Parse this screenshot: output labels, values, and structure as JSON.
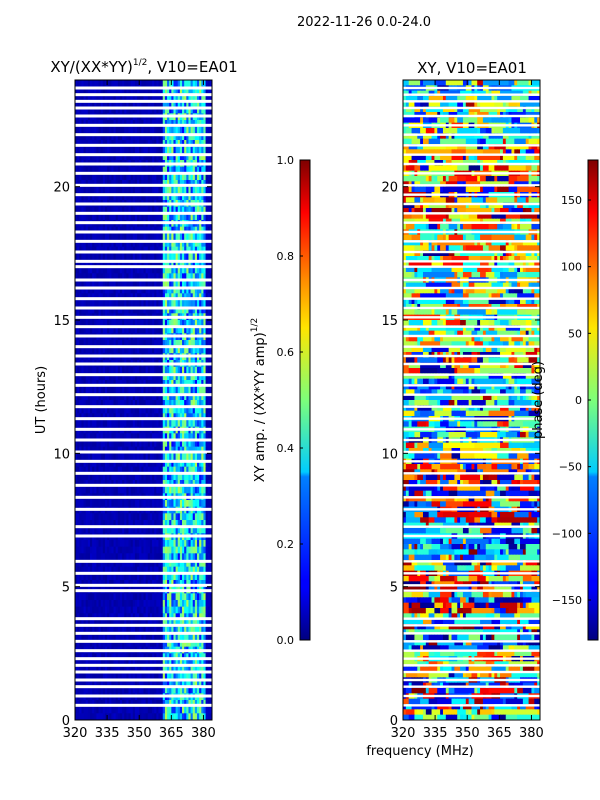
{
  "figure": {
    "suptitle": "2022-11-26 0.0-24.0",
    "shared_xlabel": "frequency (MHz)"
  },
  "chart_data": [
    {
      "type": "heatmap",
      "title_main": "XY/(XX*YY)",
      "title_exp": "1/2",
      "title_suffix": ", V10=EA01",
      "xlabel": "",
      "ylabel": "UT (hours)",
      "xlim": [
        320,
        384
      ],
      "ylim": [
        0,
        24
      ],
      "xticks": [
        320,
        335,
        350,
        365,
        380
      ],
      "yticks": [
        0,
        5,
        10,
        15,
        20
      ],
      "colorbar": {
        "label_main": "XY amp. / (XX*YY amp)",
        "label_exp": "1/2",
        "range": [
          0.0,
          1.0
        ],
        "ticks": [
          "0.0",
          "0.2",
          "0.4",
          "0.6",
          "0.8",
          "1.0"
        ],
        "cmap": "jet"
      },
      "rfi_band_mhz": [
        361,
        381
      ],
      "background_value": 0.05,
      "band_value_range": [
        0.25,
        0.55
      ]
    },
    {
      "type": "heatmap",
      "title": "XY, V10=EA01",
      "xlabel": "",
      "ylabel": "",
      "xlim": [
        320,
        384
      ],
      "ylim": [
        0,
        24
      ],
      "xticks": [
        320,
        335,
        350,
        365,
        380
      ],
      "yticks": [
        0,
        5,
        10,
        15,
        20
      ],
      "colorbar": {
        "label": "phase (deg)",
        "range": [
          -180,
          180
        ],
        "ticks": [
          "−150",
          "−100",
          "−50",
          "0",
          "50",
          "100",
          "150"
        ],
        "tick_values": [
          -150,
          -100,
          -50,
          0,
          50,
          100,
          150
        ],
        "cmap": "jet"
      },
      "value_range": [
        -180,
        180
      ]
    }
  ],
  "flagged_rows_ut_hours": [
    0.55,
    0.9,
    1.25,
    1.5,
    1.8,
    2.05,
    2.3,
    2.6,
    2.95,
    3.25,
    3.55,
    3.8,
    4.85,
    5.05,
    5.5,
    5.95,
    6.9,
    7.25,
    7.9,
    8.35,
    8.8,
    9.25,
    9.7,
    10.05,
    10.5,
    10.9,
    11.3,
    11.75,
    12.2,
    12.55,
    12.95,
    13.35,
    13.65,
    14.0,
    14.4,
    14.75,
    15.1,
    15.45,
    15.8,
    16.2,
    16.5,
    17.0,
    17.2,
    17.55,
    17.95,
    18.3,
    18.65,
    19.0,
    19.35,
    19.7,
    20.05,
    20.5,
    20.85,
    21.2,
    21.55,
    21.95,
    22.3,
    22.65,
    22.95,
    23.2,
    23.45,
    23.7
  ]
}
